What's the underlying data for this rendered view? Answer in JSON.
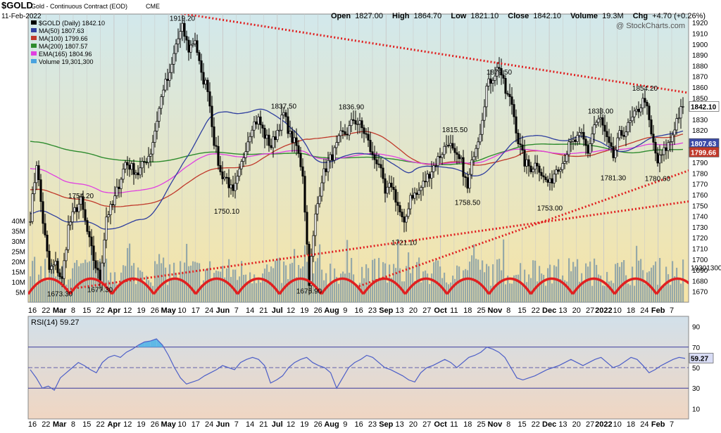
{
  "header": {
    "symbol": "$GOLD",
    "name": "Gold - Continuous Contract (EOD)",
    "exchange": "CME",
    "date": "11-Feb-2022",
    "open_label": "Open",
    "open": "1827.00",
    "high_label": "High",
    "high": "1864.70",
    "low_label": "Low",
    "low": "1821.10",
    "close_label": "Close",
    "close": "1842.10",
    "volume_label": "Volume",
    "volume": "19.3M",
    "chg_label": "Chg",
    "chg": "+4.70 (+0.26%)",
    "watermark": "@ StockCharts.com"
  },
  "legend": [
    {
      "text": "$GOLD (Daily) 1842.10",
      "color": "#000000"
    },
    {
      "text": "MA(50) 1807.63",
      "color": "#2f3f9f"
    },
    {
      "text": "MA(100) 1799.66",
      "color": "#c0392b"
    },
    {
      "text": "MA(200) 1807.57",
      "color": "#2e8b2e"
    },
    {
      "text": "EMA(165) 1804.96",
      "color": "#e040e0"
    },
    {
      "text": "Volume 19,301,300",
      "color": "#4aa3df"
    }
  ],
  "price_badges": [
    {
      "text": "1842.10",
      "value": 1842.1,
      "bg": "#ffffff",
      "fg": "#000000"
    },
    {
      "text": "1807.63",
      "value": 1807.63,
      "bg": "#3b4ba8",
      "fg": "#ffffff"
    },
    {
      "text": "1799.66",
      "value": 1799.66,
      "bg": "#c0392b",
      "fg": "#ffffff"
    }
  ],
  "volume_badge": "19301300",
  "colors": {
    "price_bg_top": "#d2e8ec",
    "price_bg_bottom": "#f6e4a6",
    "rsi_bg_top": "#d2e0ea",
    "rsi_bg_bottom": "#f0d6c2",
    "candle": "#000000",
    "ma50": "#2f3f9f",
    "ma100": "#c0392b",
    "ma200": "#2e8b2e",
    "ema165": "#e040e0",
    "volume": "#7f9aa6",
    "trend": "#e02020",
    "cycles": "#e02020",
    "rsi_line": "#4d5fc8",
    "rsi_fill": "#5fb8e6"
  },
  "chart_data": {
    "type": "candlestick",
    "price_axis": {
      "min": 1660,
      "max": 1928,
      "ticks": [
        1670,
        1680,
        1690,
        1700,
        1710,
        1720,
        1730,
        1740,
        1750,
        1760,
        1770,
        1780,
        1790,
        1800,
        1810,
        1820,
        1830,
        1840,
        1850,
        1860,
        1870,
        1880,
        1890,
        1900,
        1910,
        1920
      ]
    },
    "volume_axis": {
      "max": 40,
      "unit": "M",
      "ticks": [
        5,
        10,
        15,
        20,
        25,
        30,
        35,
        40
      ],
      "tick_labels": [
        "5M",
        "10M",
        "15M",
        "20M",
        "25M",
        "30M",
        "35M",
        "40M"
      ]
    },
    "x_labels": [
      "16",
      "22",
      "Mar",
      "8",
      "15",
      "22",
      "Apr",
      "12",
      "19",
      "26",
      "May",
      "10",
      "17",
      "24",
      "Jun",
      "7",
      "14",
      "21",
      "Jul",
      "12",
      "19",
      "26",
      "Aug",
      "9",
      "16",
      "23",
      "Sep",
      "13",
      "20",
      "27",
      "Oct",
      "11",
      "18",
      "25",
      "Nov",
      "8",
      "15",
      "22",
      "Dec",
      "13",
      "20",
      "27",
      "2022",
      "10",
      "18",
      "24",
      "Feb",
      "7"
    ],
    "month_labels": [
      "Mar",
      "Apr",
      "May",
      "Jun",
      "Jul",
      "Aug",
      "Sep",
      "Oct",
      "Nov",
      "Dec",
      "2022",
      "Feb"
    ],
    "price_path": [
      [
        0,
        1740
      ],
      [
        3,
        1790
      ],
      [
        6,
        1735
      ],
      [
        9,
        1690
      ],
      [
        12,
        1695
      ],
      [
        15,
        1680
      ],
      [
        18,
        1730
      ],
      [
        21,
        1745
      ],
      [
        24,
        1754
      ],
      [
        27,
        1725
      ],
      [
        30,
        1700
      ],
      [
        33,
        1680
      ],
      [
        36,
        1740
      ],
      [
        39,
        1750
      ],
      [
        42,
        1770
      ],
      [
        45,
        1790
      ],
      [
        48,
        1785
      ],
      [
        51,
        1780
      ],
      [
        54,
        1790
      ],
      [
        57,
        1800
      ],
      [
        60,
        1830
      ],
      [
        63,
        1860
      ],
      [
        66,
        1870
      ],
      [
        69,
        1900
      ],
      [
        72,
        1915
      ],
      [
        75,
        1895
      ],
      [
        78,
        1905
      ],
      [
        81,
        1870
      ],
      [
        84,
        1860
      ],
      [
        87,
        1810
      ],
      [
        90,
        1780
      ],
      [
        93,
        1775
      ],
      [
        96,
        1760
      ],
      [
        99,
        1780
      ],
      [
        102,
        1805
      ],
      [
        105,
        1825
      ],
      [
        108,
        1830
      ],
      [
        111,
        1815
      ],
      [
        114,
        1805
      ],
      [
        117,
        1820
      ],
      [
        120,
        1835
      ],
      [
        123,
        1815
      ],
      [
        126,
        1805
      ],
      [
        129,
        1780
      ],
      [
        132,
        1680
      ],
      [
        135,
        1740
      ],
      [
        138,
        1775
      ],
      [
        141,
        1790
      ],
      [
        144,
        1800
      ],
      [
        147,
        1815
      ],
      [
        150,
        1818
      ],
      [
        153,
        1830
      ],
      [
        156,
        1825
      ],
      [
        159,
        1815
      ],
      [
        162,
        1795
      ],
      [
        165,
        1790
      ],
      [
        168,
        1760
      ],
      [
        171,
        1770
      ],
      [
        174,
        1750
      ],
      [
        177,
        1730
      ],
      [
        180,
        1760
      ],
      [
        183,
        1760
      ],
      [
        186,
        1770
      ],
      [
        189,
        1780
      ],
      [
        192,
        1790
      ],
      [
        195,
        1800
      ],
      [
        198,
        1810
      ],
      [
        201,
        1795
      ],
      [
        204,
        1790
      ],
      [
        207,
        1765
      ],
      [
        210,
        1800
      ],
      [
        213,
        1820
      ],
      [
        216,
        1860
      ],
      [
        219,
        1870
      ],
      [
        222,
        1880
      ],
      [
        225,
        1855
      ],
      [
        228,
        1845
      ],
      [
        231,
        1810
      ],
      [
        234,
        1790
      ],
      [
        237,
        1785
      ],
      [
        240,
        1790
      ],
      [
        243,
        1775
      ],
      [
        246,
        1770
      ],
      [
        249,
        1785
      ],
      [
        252,
        1790
      ],
      [
        255,
        1805
      ],
      [
        258,
        1810
      ],
      [
        261,
        1815
      ],
      [
        264,
        1800
      ],
      [
        267,
        1825
      ],
      [
        270,
        1830
      ],
      [
        273,
        1810
      ],
      [
        276,
        1795
      ],
      [
        279,
        1815
      ],
      [
        282,
        1820
      ],
      [
        285,
        1830
      ],
      [
        288,
        1840
      ],
      [
        291,
        1850
      ],
      [
        294,
        1815
      ],
      [
        297,
        1790
      ],
      [
        300,
        1800
      ],
      [
        303,
        1810
      ],
      [
        306,
        1830
      ],
      [
        309,
        1842
      ]
    ],
    "labeled_extremes": [
      {
        "label": "1919.20",
        "value": 1919.2
      },
      {
        "label": "1754.20",
        "value": 1754.2
      },
      {
        "label": "1673.30",
        "value": 1673.3
      },
      {
        "label": "1677.30",
        "value": 1677.3
      },
      {
        "label": "1750.10",
        "value": 1750.1
      },
      {
        "label": "1837.50",
        "value": 1837.5
      },
      {
        "label": "1675.90",
        "value": 1675.9
      },
      {
        "label": "1836.90",
        "value": 1836.9
      },
      {
        "label": "1721.10",
        "value": 1721.1
      },
      {
        "label": "1815.50",
        "value": 1815.5
      },
      {
        "label": "1758.50",
        "value": 1758.5
      },
      {
        "label": "1879.50",
        "value": 1879.5
      },
      {
        "label": "1753.00",
        "value": 1753.0
      },
      {
        "label": "1833.00",
        "value": 1833.0
      },
      {
        "label": "1781.30",
        "value": 1781.3
      },
      {
        "label": "1854.20",
        "value": 1854.2
      },
      {
        "label": "1780.60",
        "value": 1780.6
      }
    ],
    "moving_averages": [
      {
        "name": "MA(50)",
        "value": 1807.63
      },
      {
        "name": "MA(100)",
        "value": 1799.66
      },
      {
        "name": "MA(200)",
        "value": 1807.57
      },
      {
        "name": "EMA(165)",
        "value": 1804.96
      }
    ],
    "rsi": {
      "label": "RSI(14) 59.27",
      "value": 59.27,
      "axis": [
        10,
        30,
        50,
        70,
        90
      ],
      "overbought": 70,
      "oversold": 30,
      "values": [
        48,
        40,
        30,
        32,
        28,
        40,
        45,
        50,
        55,
        52,
        48,
        45,
        55,
        60,
        62,
        60,
        65,
        68,
        72,
        75,
        76,
        78,
        72,
        62,
        50,
        40,
        34,
        36,
        38,
        42,
        45,
        48,
        52,
        50,
        48,
        55,
        58,
        60,
        58,
        52,
        35,
        38,
        42,
        50,
        55,
        58,
        60,
        55,
        52,
        50,
        45,
        30,
        40,
        50,
        55,
        58,
        62,
        60,
        55,
        50,
        48,
        45,
        42,
        38,
        36,
        45,
        50,
        52,
        55,
        58,
        55,
        50,
        55,
        60,
        62,
        65,
        70,
        68,
        65,
        60,
        50,
        40,
        38,
        40,
        42,
        45,
        48,
        50,
        52,
        55,
        58,
        55,
        52,
        55,
        58,
        60,
        55,
        50,
        52,
        56,
        60,
        58,
        52,
        45,
        48,
        52,
        55,
        58,
        60,
        59
      ]
    }
  }
}
